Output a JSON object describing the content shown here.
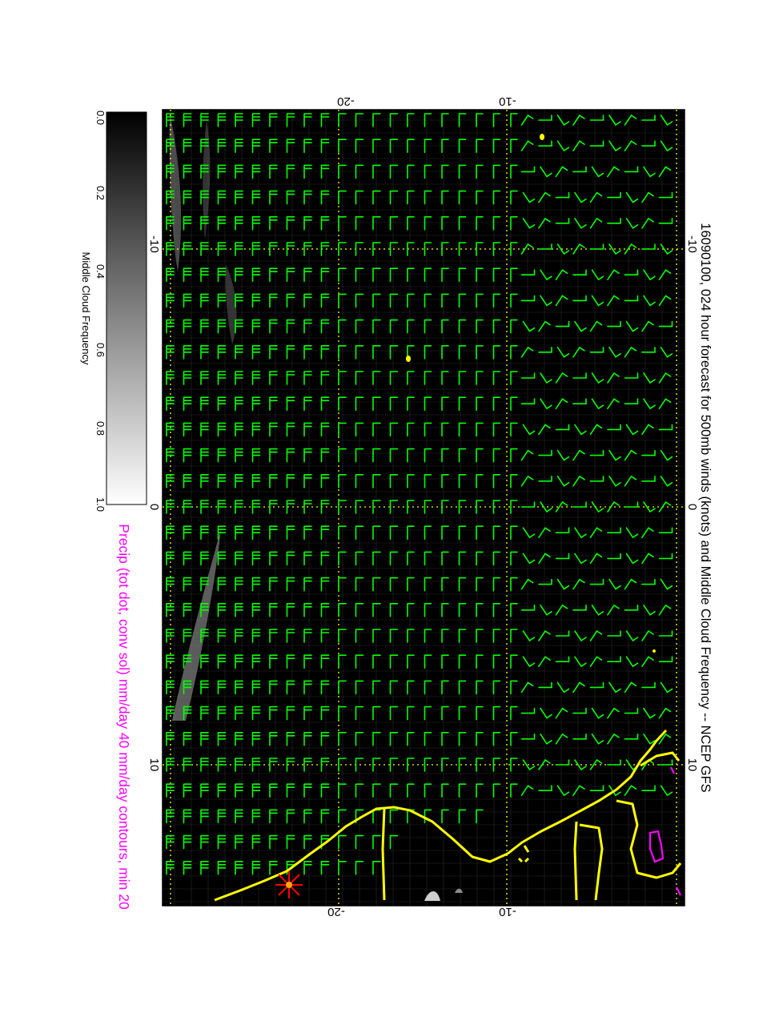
{
  "title": "16090100, 024 hour forecast for 500mb winds (knots) and Middle Cloud Frequency -- NCEP GFS",
  "precip_caption": "Precip (tot dot, conv sol) mm/day 40 mm/day contours, min 20",
  "colorbar": {
    "label": "Middle Cloud Frequency",
    "ticks": [
      "0.0",
      "0.2",
      "0.4",
      "0.6",
      "0.8",
      "1.0"
    ]
  },
  "map": {
    "latitude_ticks": [
      "-10",
      "0",
      "10"
    ],
    "longitude_ticks": [
      "-20",
      "-10"
    ]
  },
  "colors": {
    "background": "#000000",
    "wind_barbs": "#00ff00",
    "coastline": "#ffff00",
    "grid": "#ffff00",
    "precip_contours": "#ff00ff",
    "title_text": "#000000",
    "caption_text": "#ff00ff"
  },
  "wind_field": {
    "units": "knots",
    "level": "500mb"
  },
  "markers": [
    {
      "name": "star-marker",
      "color": "#ff0000"
    }
  ]
}
